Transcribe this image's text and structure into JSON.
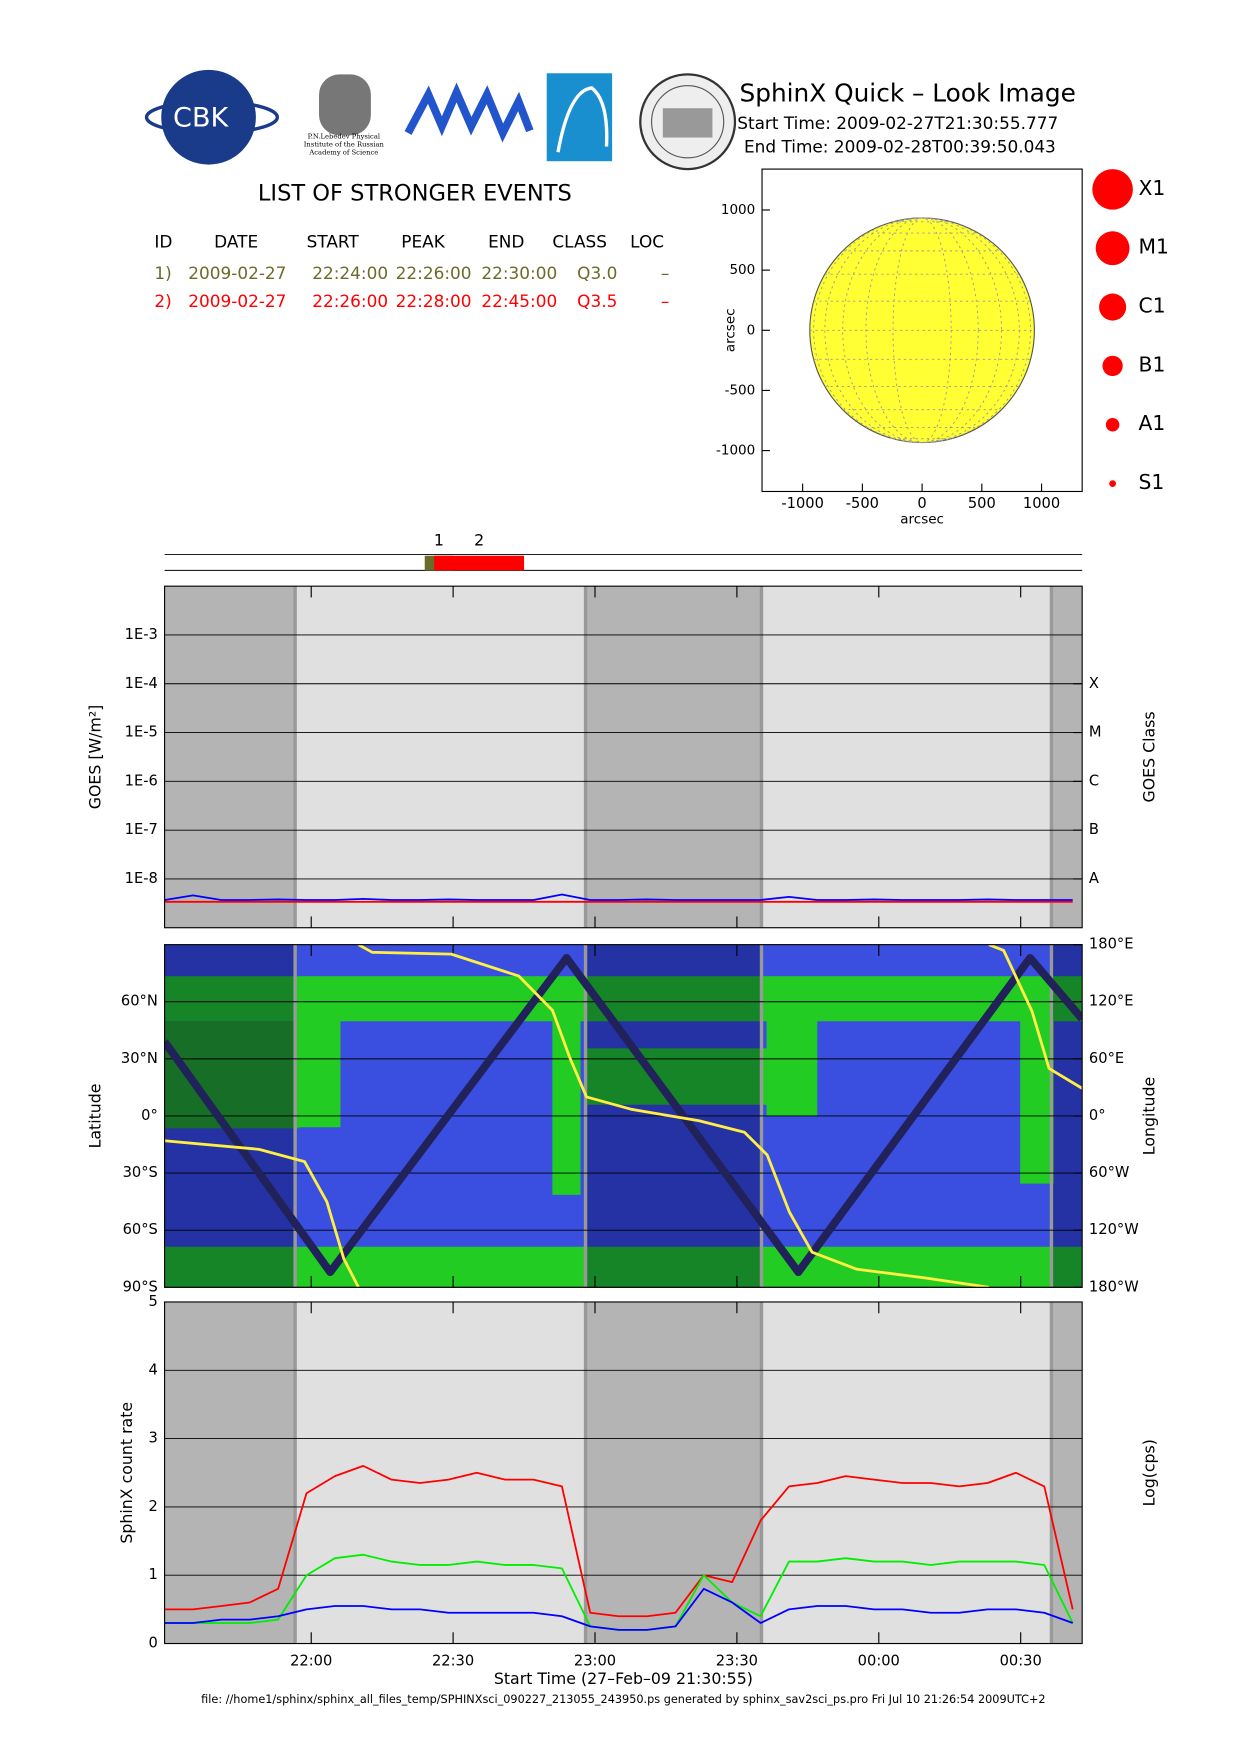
{
  "header": {
    "title": "SphinX Quick – Look Image",
    "start_time": "Start Time: 2009-02-27T21:30:55.777",
    "end_time": "End Time: 2009-02-28T00:39:50.043",
    "logo_cbk": "CBK",
    "logo_lebedev": "P.N.Lebedev Physical Institute of the Russian Academy of Science"
  },
  "events": {
    "title": "LIST OF STRONGER EVENTS",
    "columns": [
      "ID",
      "DATE",
      "START",
      "PEAK",
      "END",
      "CLASS",
      "LOC"
    ],
    "rows": [
      [
        "1)",
        "2009-02-27",
        "22:24:00",
        "22:26:00",
        "22:30:00",
        "Q3.0",
        "–"
      ],
      [
        "2)",
        "2009-02-27",
        "22:26:00",
        "22:28:00",
        "22:45:00",
        "Q3.5",
        "–"
      ]
    ],
    "colors": [
      "#6b6b2a",
      "#ff0000"
    ],
    "bar_labels": [
      "1",
      "2"
    ]
  },
  "sun": {
    "xlabel": "arcsec",
    "ylabel": "arcsec",
    "xlim": [
      -1340,
      1340
    ],
    "ylim": [
      -1340,
      1340
    ],
    "xticks": [
      -1000,
      -500,
      0,
      500,
      1000
    ],
    "yticks": [
      -1000,
      -500,
      0,
      500,
      1000
    ],
    "disk_radius": 940,
    "disk_color": "#ffff33"
  },
  "class_legend": {
    "labels": [
      "X1",
      "M1",
      "C1",
      "B1",
      "A1",
      "S1"
    ],
    "color": "#ff0000"
  },
  "time_axis": {
    "xlim": [
      1289,
      1483
    ],
    "xticks": [
      {
        "value": 1320,
        "label": "22:00"
      },
      {
        "value": 1350,
        "label": "22:30"
      },
      {
        "value": 1380,
        "label": "23:00"
      },
      {
        "value": 1410,
        "label": "23:30"
      },
      {
        "value": 1440,
        "label": "00:00"
      },
      {
        "value": 1470,
        "label": "00:30"
      }
    ],
    "xlabel": "Start Time (27–Feb–09 21:30:55)",
    "shade_intervals": [
      [
        1289,
        1316.6
      ],
      [
        1378,
        1415.2
      ],
      [
        1476.5,
        1483
      ]
    ]
  },
  "goes": {
    "type": "line",
    "log_scale": true,
    "grid": true,
    "ylabel": "GOES [W/m²]",
    "y2label": "GOES Class",
    "ylim": [
      1e-09,
      0.01
    ],
    "yticks": [
      {
        "value": 1e-08,
        "label": "1E-8"
      },
      {
        "value": 1e-07,
        "label": "1E-7"
      },
      {
        "value": 1e-06,
        "label": "1E-6"
      },
      {
        "value": 1e-05,
        "label": "1E-5"
      },
      {
        "value": 0.0001,
        "label": "1E-4"
      },
      {
        "value": 0.001,
        "label": "1E-3"
      }
    ],
    "y2ticks": [
      {
        "value": 1e-08,
        "label": "A"
      },
      {
        "value": 1e-07,
        "label": "B"
      },
      {
        "value": 1e-06,
        "label": "C"
      },
      {
        "value": 1e-05,
        "label": "M"
      },
      {
        "value": 0.0001,
        "label": "X"
      }
    ],
    "x": [
      1289,
      1295,
      1301,
      1307,
      1313,
      1319,
      1325,
      1331,
      1337,
      1343,
      1349,
      1355,
      1361,
      1367,
      1373,
      1379,
      1385,
      1391,
      1397,
      1403,
      1409,
      1415,
      1421,
      1427,
      1433,
      1439,
      1445,
      1451,
      1457,
      1463,
      1469,
      1475,
      1481
    ],
    "series": [
      {
        "color": "#ff0000",
        "values": [
          3.4e-09,
          3.4e-09,
          3.4e-09,
          3.4e-09,
          3.4e-09,
          3.4e-09,
          3.4e-09,
          3.4e-09,
          3.4e-09,
          3.4e-09,
          3.4e-09,
          3.4e-09,
          3.4e-09,
          3.4e-09,
          3.4e-09,
          3.4e-09,
          3.4e-09,
          3.4e-09,
          3.4e-09,
          3.4e-09,
          3.4e-09,
          3.4e-09,
          3.4e-09,
          3.4e-09,
          3.4e-09,
          3.4e-09,
          3.4e-09,
          3.4e-09,
          3.4e-09,
          3.4e-09,
          3.4e-09,
          3.4e-09,
          3.4e-09
        ]
      },
      {
        "color": "#0000ff",
        "values": [
          3.7e-09,
          4.6e-09,
          3.7e-09,
          3.7e-09,
          3.8e-09,
          3.7e-09,
          3.7e-09,
          3.9e-09,
          3.7e-09,
          3.7e-09,
          3.8e-09,
          3.7e-09,
          3.7e-09,
          3.7e-09,
          4.8e-09,
          3.7e-09,
          3.7e-09,
          3.8e-09,
          3.7e-09,
          3.7e-09,
          3.7e-09,
          3.7e-09,
          4.3e-09,
          3.7e-09,
          3.7e-09,
          3.8e-09,
          3.7e-09,
          3.7e-09,
          3.7e-09,
          3.8e-09,
          3.7e-09,
          3.7e-09,
          3.7e-09
        ]
      }
    ]
  },
  "orbit": {
    "type": "line",
    "grid": true,
    "ylabel": "Latitude",
    "y2label": "Longitude",
    "ylim": [
      -90,
      90
    ],
    "yticks": [
      {
        "value": -90,
        "label": "90°S"
      },
      {
        "value": -60,
        "label": "60°S"
      },
      {
        "value": -30,
        "label": "30°S"
      },
      {
        "value": 0,
        "label": "0°"
      },
      {
        "value": 30,
        "label": "30°N"
      },
      {
        "value": 60,
        "label": "60°N"
      }
    ],
    "y2lim": [
      -180,
      180
    ],
    "y2ticks": [
      {
        "value": -180,
        "label": "180°W"
      },
      {
        "value": -120,
        "label": "120°W"
      },
      {
        "value": -60,
        "label": "60°W"
      },
      {
        "value": 0,
        "label": "0°"
      },
      {
        "value": 60,
        "label": "60°E"
      },
      {
        "value": 120,
        "label": "120°E"
      },
      {
        "value": 180,
        "label": "180°E"
      }
    ],
    "series": [
      {
        "color": "#22225a",
        "x": [
          1289,
          1324,
          1374,
          1423,
          1472,
          1483
        ],
        "values": [
          39,
          -82,
          83,
          -82,
          83,
          51
        ]
      },
      {
        "color": "#ffee44",
        "axis": "y2",
        "x": [
          1289,
          1309,
          1318.6,
          1323.3,
          1326.9,
          1330,
          1330,
          1330,
          1332.9,
          1349.6,
          1363.9,
          1371,
          1374.6,
          1378.2,
          1387.7,
          1402,
          1411.6,
          1416.4,
          1421.1,
          1425.9,
          1435.4,
          1449.7,
          1463.3,
          1463.3,
          1463.3,
          1466.4,
          1472.4,
          1476,
          1483
        ],
        "values": [
          -26,
          -35,
          -48,
          -90,
          -150,
          -180,
          null,
          180,
          172,
          170,
          147,
          111,
          62,
          20,
          7,
          -5,
          -17,
          -41,
          -101,
          -143,
          -161,
          -170,
          -180,
          null,
          180,
          174,
          110,
          50,
          29
        ]
      }
    ]
  },
  "counts": {
    "type": "line",
    "grid": true,
    "ylabel": "SphinX count rate",
    "y2label": "Log(cps)",
    "ylim": [
      0,
      5
    ],
    "yticks": [
      0,
      1,
      2,
      3,
      4,
      5
    ],
    "x": [
      1289,
      1295,
      1301,
      1307,
      1313,
      1319,
      1325,
      1331,
      1337,
      1343,
      1349,
      1355,
      1361,
      1367,
      1373,
      1379,
      1385,
      1391,
      1397,
      1403,
      1409,
      1415,
      1421,
      1427,
      1433,
      1439,
      1445,
      1451,
      1457,
      1463,
      1469,
      1475,
      1481
    ],
    "series": [
      {
        "color": "#ff0000",
        "values": [
          0.5,
          0.5,
          0.55,
          0.6,
          0.8,
          2.2,
          2.45,
          2.6,
          2.4,
          2.35,
          2.4,
          2.5,
          2.4,
          2.4,
          2.3,
          0.45,
          0.4,
          0.4,
          0.45,
          1.0,
          0.9,
          1.8,
          2.3,
          2.35,
          2.45,
          2.4,
          2.35,
          2.35,
          2.3,
          2.35,
          2.5,
          2.3,
          0.5
        ]
      },
      {
        "color": "#00ee00",
        "values": [
          0.3,
          0.3,
          0.3,
          0.3,
          0.35,
          1.0,
          1.25,
          1.3,
          1.2,
          1.15,
          1.15,
          1.2,
          1.15,
          1.15,
          1.1,
          0.25,
          0.2,
          0.2,
          0.25,
          1.0,
          0.6,
          0.4,
          1.2,
          1.2,
          1.25,
          1.2,
          1.2,
          1.15,
          1.2,
          1.2,
          1.2,
          1.15,
          0.3
        ]
      },
      {
        "color": "#0000ff",
        "values": [
          0.3,
          0.3,
          0.35,
          0.35,
          0.4,
          0.5,
          0.55,
          0.55,
          0.5,
          0.5,
          0.45,
          0.45,
          0.45,
          0.45,
          0.4,
          0.25,
          0.2,
          0.2,
          0.25,
          0.8,
          0.6,
          0.3,
          0.5,
          0.55,
          0.55,
          0.5,
          0.5,
          0.45,
          0.45,
          0.5,
          0.5,
          0.45,
          0.3
        ]
      }
    ]
  },
  "footer": "file: //home1/sphinx/sphinx_all_files_temp/SPHINXsci_090227_213055_243950.ps generated by sphinx_sav2sci_ps.pro Fri Jul 10 21:26:54 2009UTC+2"
}
